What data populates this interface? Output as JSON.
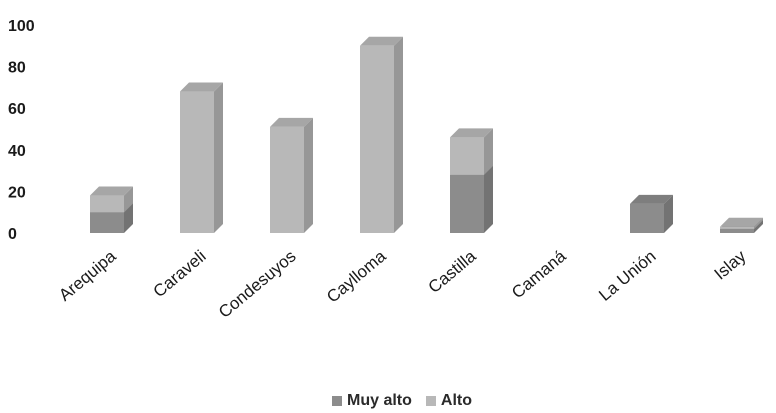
{
  "chart_data": {
    "type": "bar",
    "stacked": true,
    "three_d": true,
    "categories": [
      "Arequipa",
      "Caraveli",
      "Condesuyos",
      "Caylloma",
      "Castilla",
      "Camaná",
      "La Unión",
      "Islay"
    ],
    "series": [
      {
        "name": "Muy alto",
        "color": "#8c8c8c",
        "values": [
          10,
          0,
          0,
          0,
          28,
          0,
          14,
          2
        ]
      },
      {
        "name": "Alto",
        "color": "#b8b8b8",
        "values": [
          8,
          68,
          51,
          90,
          18,
          0,
          0,
          1
        ]
      }
    ],
    "yticks": [
      0,
      20,
      40,
      60,
      80,
      100
    ],
    "ylim": [
      0,
      100
    ],
    "xlabel": "",
    "ylabel": "",
    "title": "",
    "legend_position": "bottom",
    "grid": false
  }
}
